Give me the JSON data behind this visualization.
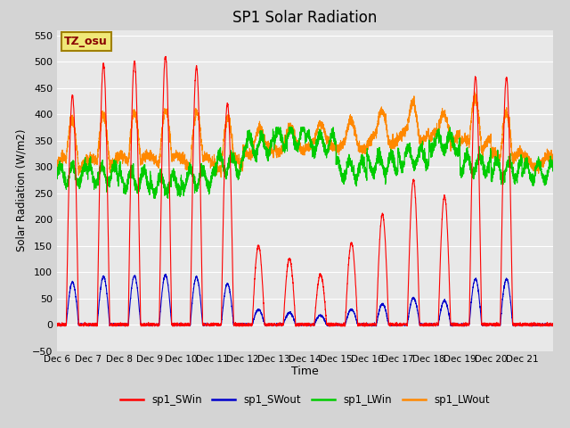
{
  "title": "SP1 Solar Radiation",
  "xlabel": "Time",
  "ylabel": "Solar Radiation (W/m2)",
  "ylim": [
    -50,
    560
  ],
  "yticks": [
    -50,
    0,
    50,
    100,
    150,
    200,
    250,
    300,
    350,
    400,
    450,
    500,
    550
  ],
  "fig_bg_color": "#d4d4d4",
  "plot_bg_color": "#e8e8e8",
  "annotation_text": "TZ_osu",
  "annotation_bg": "#f0e878",
  "annotation_border": "#a08000",
  "annotation_text_color": "#880000",
  "series_colors": {
    "sp1_SWin": "#ff0000",
    "sp1_SWout": "#0000cc",
    "sp1_LWin": "#00cc00",
    "sp1_LWout": "#ff8800"
  },
  "total_days": 16,
  "points_per_day": 288,
  "xtick_labels": [
    "Dec 6",
    "Dec 7",
    "Dec 8",
    "Dec 9",
    "Dec 10",
    "Dec 11",
    "Dec 12",
    "Dec 13",
    "Dec 14",
    "Dec 15",
    "Dec 16",
    "Dec 17",
    "Dec 18",
    "Dec 19",
    "Dec 20",
    "Dec 21",
    ""
  ],
  "line_width": 0.8,
  "grid_color": "#ffffff",
  "grid_lw": 0.8
}
